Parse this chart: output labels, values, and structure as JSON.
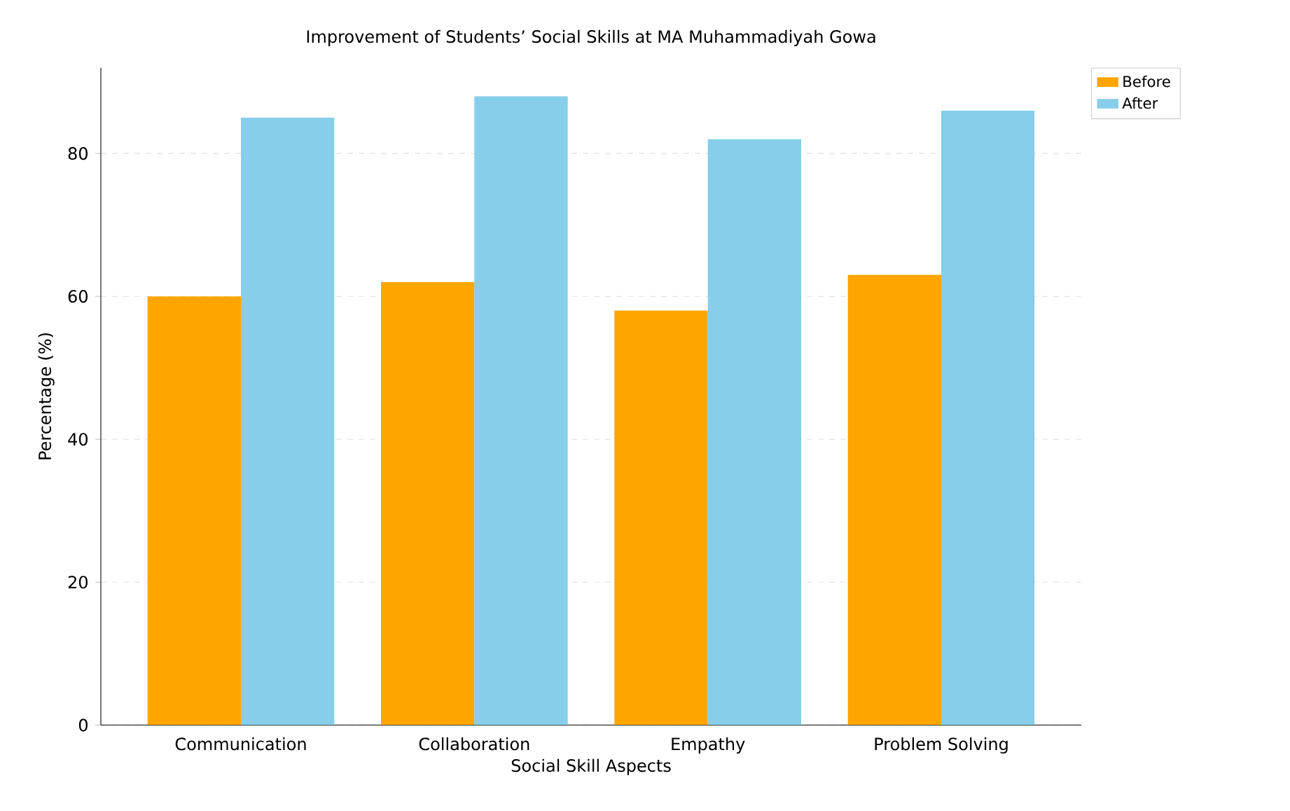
{
  "chart_data": {
    "type": "bar",
    "title": "Improvement of Students’ Social Skills at MA Muhammadiyah Gowa",
    "xlabel": "Social Skill Aspects",
    "ylabel": "Percentage (%)",
    "categories": [
      "Communication",
      "Collaboration",
      "Empathy",
      "Problem Solving"
    ],
    "series": [
      {
        "name": "Before",
        "color": "#ffa500",
        "values": [
          60,
          62,
          58,
          63
        ]
      },
      {
        "name": "After",
        "color": "#87ceeb",
        "values": [
          85,
          88,
          82,
          86
        ]
      }
    ],
    "ylim": [
      0,
      92
    ],
    "yticks": [
      0,
      20,
      40,
      60,
      80
    ],
    "grid": "y",
    "legend": "top right"
  }
}
